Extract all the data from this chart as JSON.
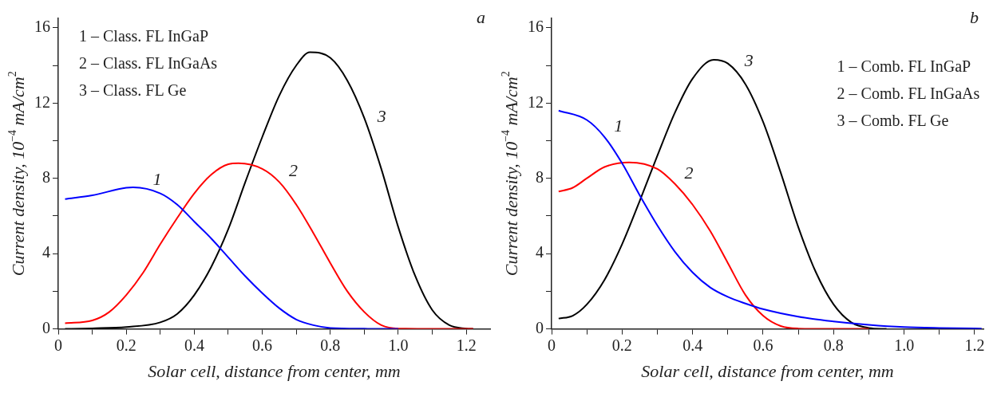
{
  "chart_data": [
    {
      "type": "line",
      "xlabel": "Solar cell, distance from center, mm",
      "ylabel": "Current density, 10$^{−4}$ mA/cm$^{2}$",
      "xlim": [
        0,
        1.27
      ],
      "ylim": [
        0,
        16.5
      ],
      "xticks": [
        0,
        {
          "value": 0.1,
          "label": null
        },
        0.2,
        {
          "value": 0.3,
          "label": null
        },
        0.4,
        {
          "value": 0.5,
          "label": null
        },
        0.6,
        {
          "value": 0.7,
          "label": null
        },
        0.8,
        {
          "value": 0.9,
          "label": null
        },
        {
          "value": 1.0,
          "label": "1.0"
        },
        {
          "value": 1.1,
          "label": null
        },
        1.2
      ],
      "yticks": [
        0,
        {
          "value": 2,
          "label": null
        },
        4,
        {
          "value": 6,
          "label": null
        },
        8,
        {
          "value": 10,
          "label": null
        },
        12,
        {
          "value": 14,
          "label": null
        },
        16
      ],
      "grid": false,
      "marker": "none",
      "line_style": "solid",
      "annotations": [
        "a",
        "1 – Class. FL InGaP",
        "2 – Class. FL InGaAs",
        "3 – Class. FL Ge",
        {
          "text": "1",
          "x": 0.25,
          "y": 7.35
        },
        {
          "text": "2",
          "x": 0.65,
          "y": 7.8
        },
        {
          "text": "3",
          "x": 0.91,
          "y": 10.7
        }
      ],
      "series": [
        {
          "color": "#0000ff",
          "x": [
            0.02,
            0.1,
            0.2,
            0.22,
            0.3,
            0.35,
            0.4,
            0.45,
            0.5,
            0.55,
            0.6,
            0.65,
            0.7,
            0.75,
            0.8,
            0.9,
            1.0
          ],
          "values": [
            6.9,
            7.1,
            7.5,
            7.52,
            7.2,
            6.6,
            5.7,
            4.8,
            3.8,
            2.8,
            1.9,
            1.1,
            0.5,
            0.2,
            0.05,
            0.01,
            0
          ]
        },
        {
          "color": "#ff0000",
          "x": [
            0.02,
            0.1,
            0.15,
            0.2,
            0.25,
            0.3,
            0.35,
            0.4,
            0.45,
            0.5,
            0.53,
            0.6,
            0.65,
            0.7,
            0.75,
            0.8,
            0.85,
            0.9,
            0.95,
            1.0,
            1.22
          ],
          "values": [
            0.3,
            0.45,
            0.9,
            1.8,
            3.0,
            4.5,
            5.9,
            7.2,
            8.2,
            8.75,
            8.8,
            8.5,
            7.8,
            6.6,
            5.1,
            3.5,
            2.0,
            0.9,
            0.2,
            0.02,
            0
          ]
        },
        {
          "color": "#000000",
          "x": [
            0.02,
            0.1,
            0.2,
            0.3,
            0.35,
            0.4,
            0.45,
            0.5,
            0.55,
            0.6,
            0.65,
            0.7,
            0.74,
            0.8,
            0.85,
            0.9,
            0.95,
            1.0,
            1.05,
            1.1,
            1.15,
            1.2,
            1.22
          ],
          "values": [
            0,
            0.03,
            0.1,
            0.35,
            0.8,
            1.8,
            3.3,
            5.3,
            7.8,
            10.2,
            12.4,
            14.0,
            14.7,
            14.4,
            13.2,
            11.2,
            8.5,
            5.4,
            2.8,
            1.0,
            0.2,
            0.02,
            0
          ]
        }
      ]
    },
    {
      "type": "line",
      "xlabel": "Solar cell, distance from center, mm",
      "ylabel": "Current density, 10$^{−4}$ mA/cm$^{2}$",
      "xlim": [
        0,
        1.225
      ],
      "ylim": [
        0,
        16.5
      ],
      "xticks": [
        0,
        {
          "value": 0.1,
          "label": null
        },
        0.2,
        {
          "value": 0.3,
          "label": null
        },
        0.4,
        {
          "value": 0.5,
          "label": null
        },
        0.6,
        {
          "value": 0.7,
          "label": null
        },
        0.8,
        {
          "value": 0.9,
          "label": null
        },
        {
          "value": 1.0,
          "label": "1.0"
        },
        {
          "value": 1.1,
          "label": null
        },
        1.2
      ],
      "yticks": [
        0,
        {
          "value": 2,
          "label": null
        },
        4,
        {
          "value": 6,
          "label": null
        },
        8,
        {
          "value": 10,
          "label": null
        },
        12,
        {
          "value": 14,
          "label": null
        },
        16
      ],
      "grid": false,
      "marker": "none",
      "line_style": "solid",
      "annotations": [
        "b",
        "1 – Comb. FL InGaP",
        "2 – Comb. FL InGaAs",
        "3 – Comb. FL Ge",
        {
          "text": "1",
          "x": 0.15,
          "y": 10.2
        },
        {
          "text": "2",
          "x": 0.35,
          "y": 7.7
        },
        {
          "text": "3",
          "x": 0.52,
          "y": 13.66
        }
      ],
      "series": [
        {
          "color": "#0000ff",
          "x": [
            0.02,
            0.1,
            0.15,
            0.2,
            0.25,
            0.3,
            0.35,
            0.4,
            0.45,
            0.5,
            0.55,
            0.6,
            0.7,
            0.8,
            0.9,
            1.0,
            1.1,
            1.22
          ],
          "values": [
            11.6,
            11.1,
            10.2,
            8.8,
            7.1,
            5.5,
            4.1,
            3.0,
            2.2,
            1.7,
            1.35,
            1.05,
            0.65,
            0.4,
            0.22,
            0.1,
            0.05,
            0.02
          ]
        },
        {
          "color": "#ff0000",
          "x": [
            0.02,
            0.06,
            0.1,
            0.15,
            0.22,
            0.3,
            0.35,
            0.4,
            0.45,
            0.5,
            0.55,
            0.6,
            0.65,
            0.7,
            0.8,
            0.9
          ],
          "values": [
            7.3,
            7.5,
            8.0,
            8.6,
            8.85,
            8.5,
            7.7,
            6.6,
            5.2,
            3.5,
            1.8,
            0.7,
            0.15,
            0.02,
            0,
            0
          ]
        },
        {
          "color": "#000000",
          "x": [
            0.02,
            0.06,
            0.1,
            0.15,
            0.2,
            0.25,
            0.3,
            0.35,
            0.4,
            0.46,
            0.5,
            0.55,
            0.6,
            0.65,
            0.7,
            0.75,
            0.8,
            0.85,
            0.9,
            0.95
          ],
          "values": [
            0.55,
            0.7,
            1.3,
            2.6,
            4.5,
            6.8,
            9.2,
            11.5,
            13.3,
            14.3,
            14.1,
            13.0,
            11.0,
            8.3,
            5.4,
            3.0,
            1.3,
            0.35,
            0.05,
            0
          ]
        }
      ]
    }
  ]
}
